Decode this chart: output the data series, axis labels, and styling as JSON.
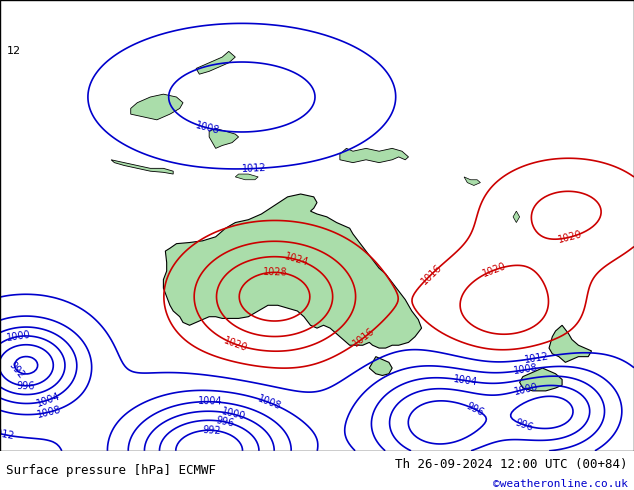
{
  "title_left": "Surface pressure [hPa] ECMWF",
  "title_right": "Th 26-09-2024 12:00 UTC (00+84)",
  "credit": "©weatheronline.co.uk",
  "bg_color": "#c8d8e8",
  "land_color": "#aaddaa",
  "contour_colors": {
    "low": "#0000ff",
    "mid_red": "#ff0000",
    "high_black": "#000000"
  },
  "figsize": [
    6.34,
    4.9
  ],
  "dpi": 100,
  "bottom_bar_color": "#e8e8e8",
  "bottom_bar_height": 0.08
}
